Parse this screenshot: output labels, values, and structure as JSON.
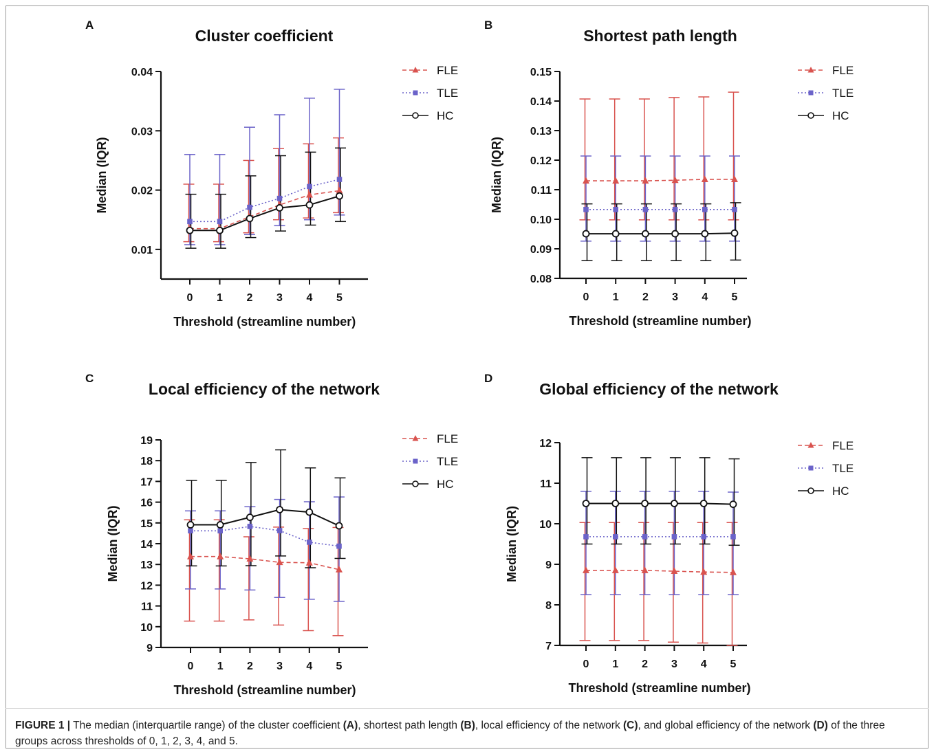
{
  "colors": {
    "FLE": "#d9534f",
    "TLE": "#6b63c9",
    "HC": "#111111"
  },
  "chart_data": [
    {
      "panel": "A",
      "type": "line",
      "title": "Cluster coefficient",
      "xlabel": "Threshold (streamline number)",
      "ylabel": "Median (IQR)",
      "categories": [
        "0",
        "1",
        "2",
        "3",
        "4",
        "5"
      ],
      "ylim": [
        0.005,
        0.04
      ],
      "yticks": [
        "0.01",
        "0.02",
        "0.03",
        "0.04"
      ],
      "legend": "top-right",
      "series": [
        {
          "name": "FLE",
          "marker": "triangle",
          "dash": "6,4",
          "values": [
            0.0135,
            0.0135,
            0.0155,
            0.0175,
            0.0192,
            0.0199
          ],
          "lower": [
            0.0113,
            0.0113,
            0.0128,
            0.015,
            0.0153,
            0.0162
          ],
          "upper": [
            0.021,
            0.021,
            0.025,
            0.027,
            0.0278,
            0.0288
          ]
        },
        {
          "name": "TLE",
          "marker": "square",
          "dash": "2,3",
          "values": [
            0.0147,
            0.0147,
            0.0171,
            0.0186,
            0.0206,
            0.0218
          ],
          "lower": [
            0.0108,
            0.0108,
            0.0125,
            0.014,
            0.015,
            0.0158
          ],
          "upper": [
            0.026,
            0.026,
            0.0306,
            0.0327,
            0.0355,
            0.037
          ]
        },
        {
          "name": "HC",
          "marker": "circle",
          "dash": "",
          "values": [
            0.0132,
            0.0132,
            0.0152,
            0.017,
            0.0175,
            0.019
          ],
          "lower": [
            0.0102,
            0.0102,
            0.012,
            0.0131,
            0.0141,
            0.0147
          ],
          "upper": [
            0.0193,
            0.0193,
            0.0224,
            0.0258,
            0.0264,
            0.0271
          ]
        }
      ]
    },
    {
      "panel": "B",
      "type": "line",
      "title": "Shortest path length",
      "xlabel": "Threshold (streamline number)",
      "ylabel": "Median (IQR)",
      "categories": [
        "0",
        "1",
        "2",
        "3",
        "4",
        "5"
      ],
      "ylim": [
        0.08,
        0.15
      ],
      "yticks": [
        "0.08",
        "0.09",
        "0.10",
        "0.11",
        "0.12",
        "0.13",
        "0.14",
        "0.15"
      ],
      "legend": "top-right",
      "series": [
        {
          "name": "FLE",
          "marker": "triangle",
          "dash": "6,4",
          "values": [
            0.113,
            0.113,
            0.113,
            0.1132,
            0.1135,
            0.1135
          ],
          "lower": [
            0.0998,
            0.0998,
            0.0998,
            0.0998,
            0.0998,
            0.0998
          ],
          "upper": [
            0.1407,
            0.1407,
            0.1407,
            0.1412,
            0.1414,
            0.143
          ]
        },
        {
          "name": "TLE",
          "marker": "square",
          "dash": "2,3",
          "values": [
            0.1033,
            0.1033,
            0.1033,
            0.1033,
            0.1033,
            0.1033
          ],
          "lower": [
            0.0926,
            0.0926,
            0.0926,
            0.0926,
            0.0926,
            0.0926
          ],
          "upper": [
            0.1214,
            0.1214,
            0.1214,
            0.1214,
            0.1214,
            0.1214
          ]
        },
        {
          "name": "HC",
          "marker": "circle",
          "dash": "",
          "values": [
            0.0951,
            0.0951,
            0.0951,
            0.0951,
            0.0951,
            0.0953
          ],
          "lower": [
            0.086,
            0.086,
            0.086,
            0.086,
            0.086,
            0.0862
          ],
          "upper": [
            0.1052,
            0.1052,
            0.1052,
            0.1052,
            0.1052,
            0.1056
          ]
        }
      ]
    },
    {
      "panel": "C",
      "type": "line",
      "title": "Local efficiency of the network",
      "xlabel": "Threshold (streamline number)",
      "ylabel": "Median (IQR)",
      "categories": [
        "0",
        "1",
        "2",
        "3",
        "4",
        "5"
      ],
      "ylim": [
        9,
        19
      ],
      "yticks": [
        "9",
        "10",
        "11",
        "12",
        "13",
        "14",
        "15",
        "16",
        "17",
        "18",
        "19"
      ],
      "legend": "top-right",
      "series": [
        {
          "name": "FLE",
          "marker": "triangle",
          "dash": "6,4",
          "values": [
            13.38,
            13.38,
            13.27,
            13.1,
            13.08,
            12.75
          ],
          "lower": [
            10.27,
            10.27,
            10.33,
            10.08,
            9.81,
            9.57
          ],
          "upper": [
            15.15,
            15.15,
            14.33,
            14.8,
            14.73,
            14.78
          ]
        },
        {
          "name": "TLE",
          "marker": "square",
          "dash": "2,3",
          "values": [
            14.62,
            14.62,
            14.83,
            14.63,
            14.07,
            13.88
          ],
          "lower": [
            11.82,
            11.82,
            11.77,
            11.41,
            11.32,
            11.22
          ],
          "upper": [
            15.58,
            15.58,
            15.78,
            16.13,
            16.02,
            16.25
          ]
        },
        {
          "name": "HC",
          "marker": "circle",
          "dash": "",
          "values": [
            14.91,
            14.91,
            15.27,
            15.64,
            15.52,
            14.86
          ],
          "lower": [
            12.93,
            12.93,
            12.94,
            13.41,
            12.84,
            13.29
          ],
          "upper": [
            17.05,
            17.05,
            17.91,
            18.52,
            17.65,
            17.17
          ]
        }
      ]
    },
    {
      "panel": "D",
      "type": "line",
      "title": "Global efficiency of the network",
      "xlabel": "Threshold (streamline number)",
      "ylabel": "Median (IQR)",
      "categories": [
        "0",
        "1",
        "2",
        "3",
        "4",
        "5"
      ],
      "ylim": [
        7,
        12
      ],
      "yticks": [
        "7",
        "8",
        "9",
        "10",
        "11",
        "12"
      ],
      "legend": "top-right",
      "series": [
        {
          "name": "FLE",
          "marker": "triangle",
          "dash": "6,4",
          "values": [
            8.85,
            8.85,
            8.85,
            8.83,
            8.81,
            8.8
          ],
          "lower": [
            7.12,
            7.12,
            7.12,
            7.08,
            7.06,
            7.0
          ],
          "upper": [
            10.03,
            10.03,
            10.03,
            10.03,
            10.03,
            10.03
          ]
        },
        {
          "name": "TLE",
          "marker": "square",
          "dash": "2,3",
          "values": [
            9.68,
            9.68,
            9.68,
            9.68,
            9.68,
            9.68
          ],
          "lower": [
            8.25,
            8.25,
            8.25,
            8.25,
            8.25,
            8.25
          ],
          "upper": [
            10.8,
            10.8,
            10.8,
            10.8,
            10.8,
            10.78
          ]
        },
        {
          "name": "HC",
          "marker": "circle",
          "dash": "",
          "values": [
            10.5,
            10.5,
            10.5,
            10.5,
            10.5,
            10.48
          ],
          "lower": [
            9.5,
            9.5,
            9.5,
            9.5,
            9.5,
            9.47
          ],
          "upper": [
            11.63,
            11.63,
            11.63,
            11.63,
            11.63,
            11.6
          ]
        }
      ]
    }
  ],
  "caption": {
    "figure_label": "FIGURE 1 |",
    "text1": " The median (interquartile range) of the cluster coefficient ",
    "ref_a": "(A)",
    "text2": ", shortest path length ",
    "ref_b": "(B)",
    "text3": ", local efficiency of the network ",
    "ref_c": "(C)",
    "text4": ", and global efficiency of the network ",
    "ref_d": "(D)",
    "text5": " of the three groups across thresholds of 0, 1, 2, 3, 4, and 5."
  }
}
